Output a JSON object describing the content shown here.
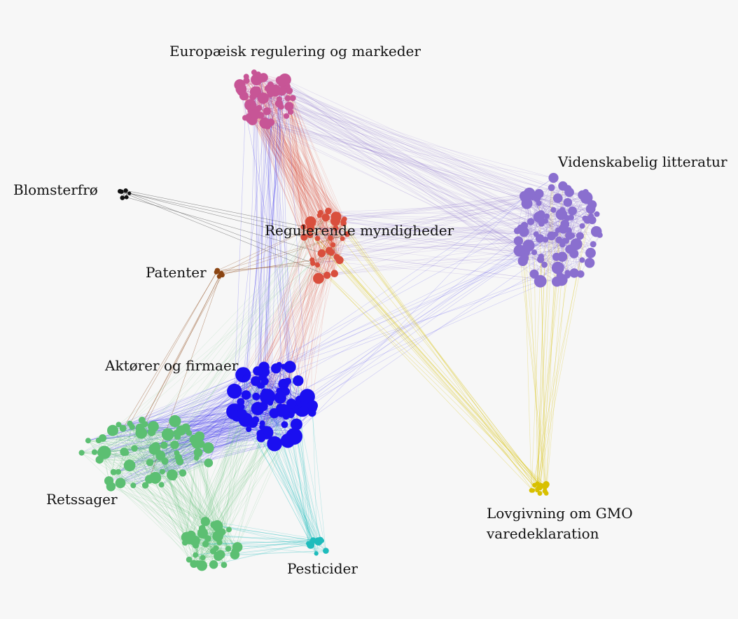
{
  "clusters": {
    "european_regulation": {
      "label": "Europæisk regulering og markeder",
      "color": "#c75596"
    },
    "scientific_literature": {
      "label": "Videnskabelig litteratur",
      "color": "#8a6fcf"
    },
    "flower_seed": {
      "label": "Blomsterfrø",
      "color": "#111111"
    },
    "regulatory_authorities": {
      "label": "Regulerende myndigheder",
      "color": "#d94f3d"
    },
    "patents": {
      "label": "Patenter",
      "color": "#8b4513"
    },
    "actors_companies": {
      "label": "Aktører og firmaer",
      "color": "#1a0ff0"
    },
    "court_cases": {
      "label": "Retssager",
      "color": "#5cbf72"
    },
    "gmo_legislation": {
      "label_line1": "Lovgivning om GMO",
      "label_line2": "varedeklaration",
      "color": "#d8c000"
    },
    "pesticides": {
      "label": "Pesticider",
      "color": "#1fbcbc"
    }
  }
}
